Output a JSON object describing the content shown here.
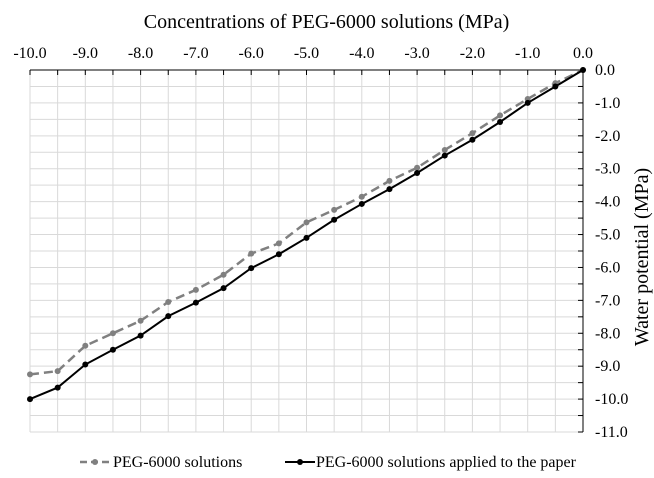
{
  "chart_data": {
    "type": "line",
    "title": "",
    "xlabel": "Concentrations of PEG-6000 solutions (MPa)",
    "ylabel": "Water potential (MPa)",
    "xlim": [
      -10.0,
      0.0
    ],
    "ylim": [
      -11.0,
      0.0
    ],
    "x_ticks": [
      "-10.0",
      "-9.0",
      "-8.0",
      "-7.0",
      "-6.0",
      "-5.0",
      "-4.0",
      "-3.0",
      "-2.0",
      "-1.0",
      "0.0"
    ],
    "y_ticks": [
      "0.0",
      "-1.0",
      "-2.0",
      "-3.0",
      "-4.0",
      "-5.0",
      "-6.0",
      "-7.0",
      "-8.0",
      "-9.0",
      "-10.0",
      "-11.0"
    ],
    "x_axis_position": "top",
    "y_axis_position": "right",
    "grid": true,
    "legend_position": "bottom",
    "series": [
      {
        "name": "PEG-6000 solutions",
        "color": "#808080",
        "style": "dashed",
        "x": [
          -10.0,
          -9.5,
          -9.0,
          -8.5,
          -8.0,
          -7.5,
          -7.0,
          -6.5,
          -6.0,
          -5.5,
          -5.0,
          -4.5,
          -4.0,
          -3.5,
          -3.0,
          -2.5,
          -2.0,
          -1.5,
          -1.0,
          -0.5,
          0.0
        ],
        "y": [
          -9.25,
          -9.15,
          -8.38,
          -8.0,
          -7.62,
          -7.05,
          -6.68,
          -6.22,
          -5.58,
          -5.27,
          -4.63,
          -4.25,
          -3.85,
          -3.37,
          -2.97,
          -2.43,
          -1.92,
          -1.38,
          -0.88,
          -0.4,
          0.0
        ]
      },
      {
        "name": "PEG-6000 solutions applied to the paper",
        "color": "#000000",
        "style": "solid",
        "x": [
          -10.0,
          -9.5,
          -9.0,
          -8.5,
          -8.0,
          -7.5,
          -7.0,
          -6.5,
          -6.0,
          -5.5,
          -5.0,
          -4.5,
          -4.0,
          -3.5,
          -3.0,
          -2.5,
          -2.0,
          -1.5,
          -1.0,
          -0.5,
          0.0
        ],
        "y": [
          -10.0,
          -9.65,
          -8.95,
          -8.5,
          -8.07,
          -7.48,
          -7.07,
          -6.63,
          -6.02,
          -5.6,
          -5.1,
          -4.55,
          -4.07,
          -3.62,
          -3.13,
          -2.6,
          -2.12,
          -1.58,
          -1.0,
          -0.5,
          0.0
        ]
      }
    ]
  }
}
